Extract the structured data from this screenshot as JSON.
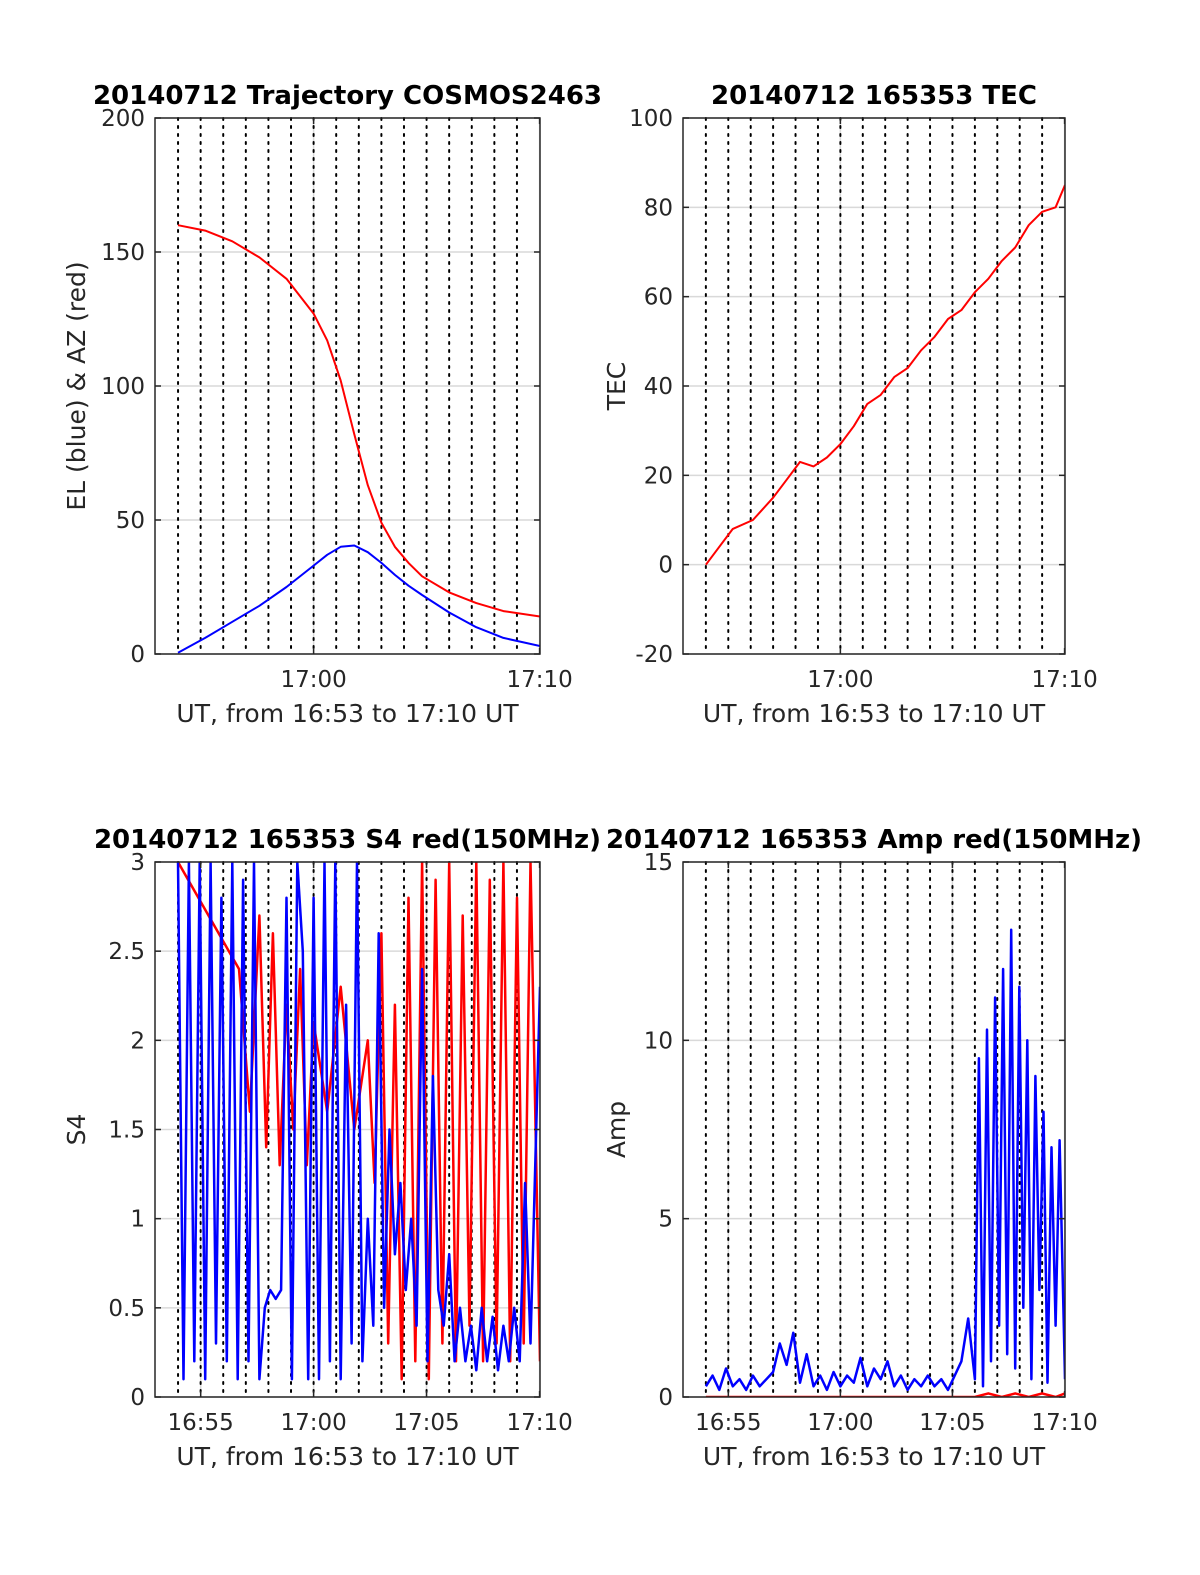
{
  "figure": {
    "background": "#ffffff",
    "axis_color": "#262626",
    "grid_color": "#d9d9d9",
    "vline_color": "#000000"
  },
  "chart_data": [
    {
      "id": "trajectory",
      "type": "line",
      "title": "20140712 Trajectory COSMOS2463",
      "xlabel": "UT, from 16:53 to 17:10 UT",
      "ylabel": "EL (blue) & AZ (red)",
      "xlim": [
        16.883,
        17.167
      ],
      "ylim": [
        0,
        200
      ],
      "xticks": [
        17.0,
        17.1667
      ],
      "xticklabels": [
        "17:00",
        "17:10"
      ],
      "yticks": [
        0,
        50,
        100,
        150,
        200
      ],
      "yticklabels": [
        "0",
        "50",
        "100",
        "150",
        "200"
      ],
      "grid": true,
      "series": [
        {
          "color": "#ff0000",
          "x": [
            16.9,
            16.92,
            16.94,
            16.96,
            16.98,
            17.0,
            17.01,
            17.02,
            17.03,
            17.04,
            17.05,
            17.06,
            17.07,
            17.08,
            17.1,
            17.12,
            17.14,
            17.167
          ],
          "y": [
            160,
            158,
            154,
            148,
            140,
            127,
            117,
            102,
            82,
            63,
            49,
            40,
            34,
            29,
            23,
            19,
            16,
            14
          ]
        },
        {
          "color": "#0000ff",
          "x": [
            16.9,
            16.92,
            16.94,
            16.96,
            16.98,
            17.0,
            17.01,
            17.02,
            17.03,
            17.04,
            17.05,
            17.06,
            17.07,
            17.08,
            17.1,
            17.12,
            17.14,
            17.167
          ],
          "y": [
            0.5,
            6,
            12,
            18,
            25,
            33,
            37,
            40,
            40.5,
            38,
            34,
            29.5,
            25.5,
            22,
            15.5,
            10,
            6,
            3
          ]
        }
      ]
    },
    {
      "id": "tec",
      "type": "line",
      "title": "20140712 165353 TEC",
      "xlabel": "UT, from 16:53 to 17:10 UT",
      "ylabel": "TEC",
      "xlim": [
        16.883,
        17.167
      ],
      "ylim": [
        -20,
        100
      ],
      "xticks": [
        17.0,
        17.1667
      ],
      "xticklabels": [
        "17:00",
        "17:10"
      ],
      "yticks": [
        -20,
        0,
        20,
        40,
        60,
        80,
        100
      ],
      "yticklabels": [
        "-20",
        "0",
        "20",
        "40",
        "60",
        "80",
        "100"
      ],
      "grid": true,
      "series": [
        {
          "color": "#ff0000",
          "x": [
            16.9,
            16.91,
            16.92,
            16.935,
            16.95,
            16.96,
            16.97,
            16.98,
            16.99,
            17.0,
            17.01,
            17.02,
            17.03,
            17.04,
            17.05,
            17.06,
            17.07,
            17.08,
            17.09,
            17.1,
            17.11,
            17.12,
            17.13,
            17.14,
            17.15,
            17.16,
            17.167
          ],
          "y": [
            0,
            4,
            8,
            10,
            15,
            19,
            23,
            22,
            24,
            27,
            31,
            36,
            38,
            42,
            44,
            48,
            51,
            55,
            57,
            61,
            64,
            68,
            71,
            76,
            79,
            80,
            85
          ]
        }
      ]
    },
    {
      "id": "s4",
      "type": "line",
      "title": "20140712 165353 S4 red(150MHz)",
      "xlabel": "UT, from 16:53 to 17:10 UT",
      "ylabel": "S4",
      "xlim": [
        16.883,
        17.167
      ],
      "ylim": [
        0,
        3
      ],
      "xticks": [
        16.9167,
        17.0,
        17.0833,
        17.1667
      ],
      "xticklabels": [
        "16:55",
        "17:00",
        "17:05",
        "17:10"
      ],
      "yticks": [
        0,
        0.5,
        1,
        1.5,
        2,
        2.5,
        3
      ],
      "yticklabels": [
        "0",
        "0.5",
        "1",
        "1.5",
        "2",
        "2.5",
        "3"
      ],
      "grid": true,
      "series": [
        {
          "color": "#ff0000",
          "x": [
            16.9,
            16.945,
            16.953,
            16.96,
            16.965,
            16.97,
            16.975,
            16.98,
            16.985,
            16.99,
            16.995,
            17.0,
            17.01,
            17.02,
            17.03,
            17.04,
            17.045,
            17.05,
            17.055,
            17.06,
            17.065,
            17.07,
            17.075,
            17.08,
            17.085,
            17.09,
            17.095,
            17.1,
            17.105,
            17.11,
            17.115,
            17.12,
            17.125,
            17.13,
            17.135,
            17.14,
            17.145,
            17.15,
            17.155,
            17.16,
            17.167
          ],
          "y": [
            3,
            2.4,
            1.6,
            2.7,
            1.4,
            2.6,
            1.3,
            2.2,
            1.5,
            2.4,
            1.3,
            2.1,
            1.6,
            2.3,
            1.5,
            2.0,
            1.2,
            2.6,
            0.3,
            2.2,
            0.1,
            2.8,
            0.2,
            3.0,
            0.1,
            2.9,
            0.3,
            3.0,
            0.2,
            2.7,
            0.4,
            3.0,
            0.2,
            2.9,
            0.3,
            3.0,
            0.2,
            2.8,
            0.3,
            3.0,
            0.2
          ]
        },
        {
          "color": "#0000ff",
          "x": [
            16.9,
            16.904,
            16.908,
            16.912,
            16.916,
            16.92,
            16.924,
            16.928,
            16.932,
            16.936,
            16.94,
            16.944,
            16.948,
            16.952,
            16.956,
            16.96,
            16.964,
            16.968,
            16.972,
            16.976,
            16.98,
            16.984,
            16.988,
            16.992,
            16.996,
            17.0,
            17.004,
            17.008,
            17.012,
            17.016,
            17.02,
            17.024,
            17.028,
            17.032,
            17.036,
            17.04,
            17.044,
            17.048,
            17.052,
            17.056,
            17.06,
            17.064,
            17.068,
            17.072,
            17.076,
            17.08,
            17.084,
            17.088,
            17.092,
            17.096,
            17.1,
            17.104,
            17.108,
            17.112,
            17.116,
            17.12,
            17.124,
            17.128,
            17.132,
            17.136,
            17.14,
            17.144,
            17.148,
            17.152,
            17.156,
            17.16,
            17.167
          ],
          "y": [
            3,
            0.1,
            3,
            0.2,
            3,
            0.1,
            3,
            0.3,
            2.8,
            0.2,
            3,
            0.1,
            2.9,
            0.2,
            3,
            0.1,
            0.5,
            0.6,
            0.55,
            0.6,
            2.8,
            0.1,
            3,
            2.5,
            0.1,
            2.8,
            0.1,
            3,
            0.2,
            3,
            0.1,
            2.2,
            0.3,
            3,
            0.2,
            1.0,
            0.4,
            2.6,
            0.5,
            1.5,
            0.8,
            1.2,
            0.6,
            1.0,
            0.4,
            2.4,
            0.2,
            1.8,
            0.6,
            0.4,
            0.8,
            0.2,
            0.5,
            0.2,
            0.4,
            0.15,
            0.5,
            0.2,
            0.45,
            0.15,
            0.4,
            0.2,
            0.5,
            0.2,
            1.2,
            0.3,
            2.3
          ]
        }
      ]
    },
    {
      "id": "amp",
      "type": "line",
      "title": "20140712 165353 Amp red(150MHz)",
      "xlabel": "UT, from 16:53 to 17:10 UT",
      "ylabel": "Amp",
      "xlim": [
        16.883,
        17.167
      ],
      "ylim": [
        0,
        15
      ],
      "xticks": [
        16.9167,
        17.0,
        17.0833,
        17.1667
      ],
      "xticklabels": [
        "16:55",
        "17:00",
        "17:05",
        "17:10"
      ],
      "yticks": [
        0,
        5,
        10,
        15
      ],
      "yticklabels": [
        "0",
        "5",
        "10",
        "15"
      ],
      "grid": true,
      "series": [
        {
          "color": "#ff0000",
          "x": [
            16.9,
            17.1,
            17.11,
            17.12,
            17.13,
            17.14,
            17.15,
            17.16,
            17.167
          ],
          "y": [
            0,
            0,
            0.1,
            0,
            0.1,
            0,
            0.1,
            0,
            0.1
          ]
        },
        {
          "color": "#0000ff",
          "x": [
            16.9,
            16.905,
            16.91,
            16.915,
            16.92,
            16.925,
            16.93,
            16.935,
            16.94,
            16.945,
            16.95,
            16.955,
            16.96,
            16.965,
            16.97,
            16.975,
            16.98,
            16.985,
            16.99,
            16.995,
            17.0,
            17.005,
            17.01,
            17.015,
            17.02,
            17.025,
            17.03,
            17.035,
            17.04,
            17.045,
            17.05,
            17.055,
            17.06,
            17.065,
            17.07,
            17.075,
            17.08,
            17.085,
            17.09,
            17.095,
            17.1,
            17.103,
            17.106,
            17.109,
            17.112,
            17.115,
            17.118,
            17.121,
            17.124,
            17.127,
            17.13,
            17.133,
            17.136,
            17.139,
            17.142,
            17.145,
            17.148,
            17.151,
            17.154,
            17.157,
            17.16,
            17.163,
            17.167
          ],
          "y": [
            0.3,
            0.6,
            0.2,
            0.8,
            0.3,
            0.5,
            0.2,
            0.6,
            0.3,
            0.5,
            0.7,
            1.5,
            0.9,
            1.8,
            0.4,
            1.2,
            0.3,
            0.6,
            0.2,
            0.7,
            0.3,
            0.6,
            0.4,
            1.1,
            0.3,
            0.8,
            0.5,
            1.0,
            0.3,
            0.6,
            0.2,
            0.5,
            0.3,
            0.6,
            0.3,
            0.5,
            0.2,
            0.6,
            1.0,
            2.2,
            0.5,
            9.5,
            0.3,
            10.3,
            1.0,
            11.2,
            2.0,
            12.0,
            1.2,
            13.1,
            0.8,
            11.5,
            2.5,
            10.0,
            0.5,
            9.0,
            3.0,
            8.0,
            0.4,
            7.0,
            2.0,
            7.2,
            0.5
          ]
        }
      ]
    }
  ]
}
